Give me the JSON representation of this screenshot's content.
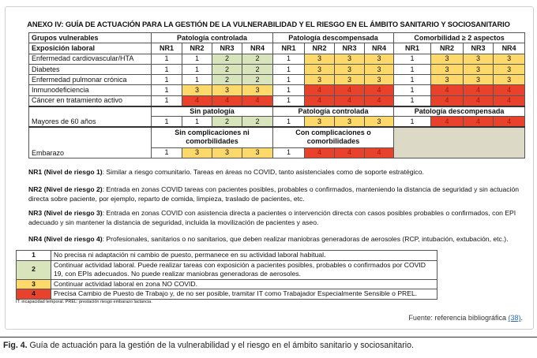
{
  "title": "ANEXO IV: GUÍA DE ACTUACIÓN PARA LA GESTIÓN DE LA VULNERABILIDAD Y EL RIESGO EN EL ÁMBITO SANITARIO Y SOCIOSANITARIO",
  "table": {
    "header_label": "Grupos vulnerables",
    "groups": [
      "Patología controlada",
      "Patología descompensada",
      "Comorbilidad ≥ 2 aspectos"
    ],
    "exposure_label": "Exposición laboral",
    "nr_labels": [
      "NR1",
      "NR2",
      "NR3",
      "NR4"
    ],
    "rows": [
      {
        "label": "Enfermedad cardiovascular/HTA",
        "values": [
          1,
          1,
          2,
          2,
          1,
          3,
          3,
          3,
          1,
          3,
          3,
          3
        ]
      },
      {
        "label": "Diabetes",
        "values": [
          1,
          1,
          2,
          2,
          1,
          3,
          3,
          3,
          1,
          3,
          3,
          3
        ]
      },
      {
        "label": "Enfermedad pulmonar crónica",
        "values": [
          1,
          1,
          2,
          2,
          1,
          3,
          3,
          3,
          1,
          3,
          3,
          3
        ]
      },
      {
        "label": "Inmunodeficiencia",
        "values": [
          1,
          3,
          3,
          3,
          1,
          4,
          4,
          4,
          1,
          4,
          4,
          4
        ]
      },
      {
        "label": "Cáncer en tratamiento activo",
        "values": [
          1,
          4,
          4,
          4,
          1,
          4,
          4,
          4,
          1,
          4,
          4,
          4
        ]
      }
    ],
    "mayores": {
      "label": "Mayores de 60 años",
      "groups": [
        "Sin patología",
        "Patología controlada",
        "Patología descompensada"
      ],
      "values": [
        1,
        1,
        2,
        2,
        1,
        3,
        3,
        3,
        1,
        4,
        4,
        4
      ]
    },
    "embarazo": {
      "label": "Embarazo",
      "groups": [
        "Sin complicaciones ni comorbilidades",
        "Con complicaciones o comorbilidades"
      ],
      "values": [
        1,
        3,
        3,
        3,
        1,
        4,
        4,
        4
      ]
    }
  },
  "levels": [
    {
      "term": "NR1 (Nivel de riesgo 1)",
      "text": ": Similar a riesgo comunitario. Tareas en áreas no COVID, tanto asistenciales como de soporte estratégico."
    },
    {
      "term": "NR2 (Nivel de riesgo 2)",
      "text": ": Entrada en zonas COVID tareas con pacientes posibles, probables o confirmados, manteniendo la distancia de seguridad y sin actuación directa sobre paciente, por ejemplo, reparto de comida, limpieza, traslado de pacientes, etc."
    },
    {
      "term": "NR3 (Nivel de riesgo 3)",
      "text": ": Entrada en zonas COVID  con asistencia directa a pacientes o intervención directa con casos posibles probables o confirmados, con EPI adecuado y sin mantener la distancia de seguridad, incluida la movilización de pacientes y aseo."
    },
    {
      "term": "NR4 (Nivel de riesgo 4)",
      "text": ": Profesionales, sanitarios o no sanitarios, que deben realizar maniobras generadoras de aerosoles (RCP, intubación, extubación, etc.)."
    }
  ],
  "legend": [
    {
      "n": "1",
      "text": "No precisa ni adaptación ni cambio de puesto, permanece en su actividad laboral habitual."
    },
    {
      "n": "2",
      "text": "Continuar actividad laboral. Puede realizar tareas con exposición a pacientes posibles, probables o confirmados por COVID 19, con EPIs adecuados. No puede realizar maniobras generadoras de aerosoles."
    },
    {
      "n": "3",
      "text": "Continuar actividad laboral en zona NO COVID."
    },
    {
      "n": "4",
      "text": "Precisa Cambio de Puesto de Trabajo y, de no ser posible, tramitar IT como Trabajador Especialmente Sensible o PREL."
    }
  ],
  "colors": {
    "1": "#ffffff",
    "2": "#d8e4bc",
    "3": "#fcd96a",
    "4": "#e8412c"
  },
  "footnote": "IT: incapacidad temporal. PREL: prestación riesgo embarazo lactancia.",
  "source": {
    "prefix": "Fuente: referencia bibliográfica ",
    "ref": "(38)",
    "suffix": "."
  },
  "caption": {
    "label": "Fig. 4.",
    "text": " Guía de actuación para la gestión de la vulnerabilidad y el riesgo en el ámbito sanitario y sociosanitario."
  }
}
